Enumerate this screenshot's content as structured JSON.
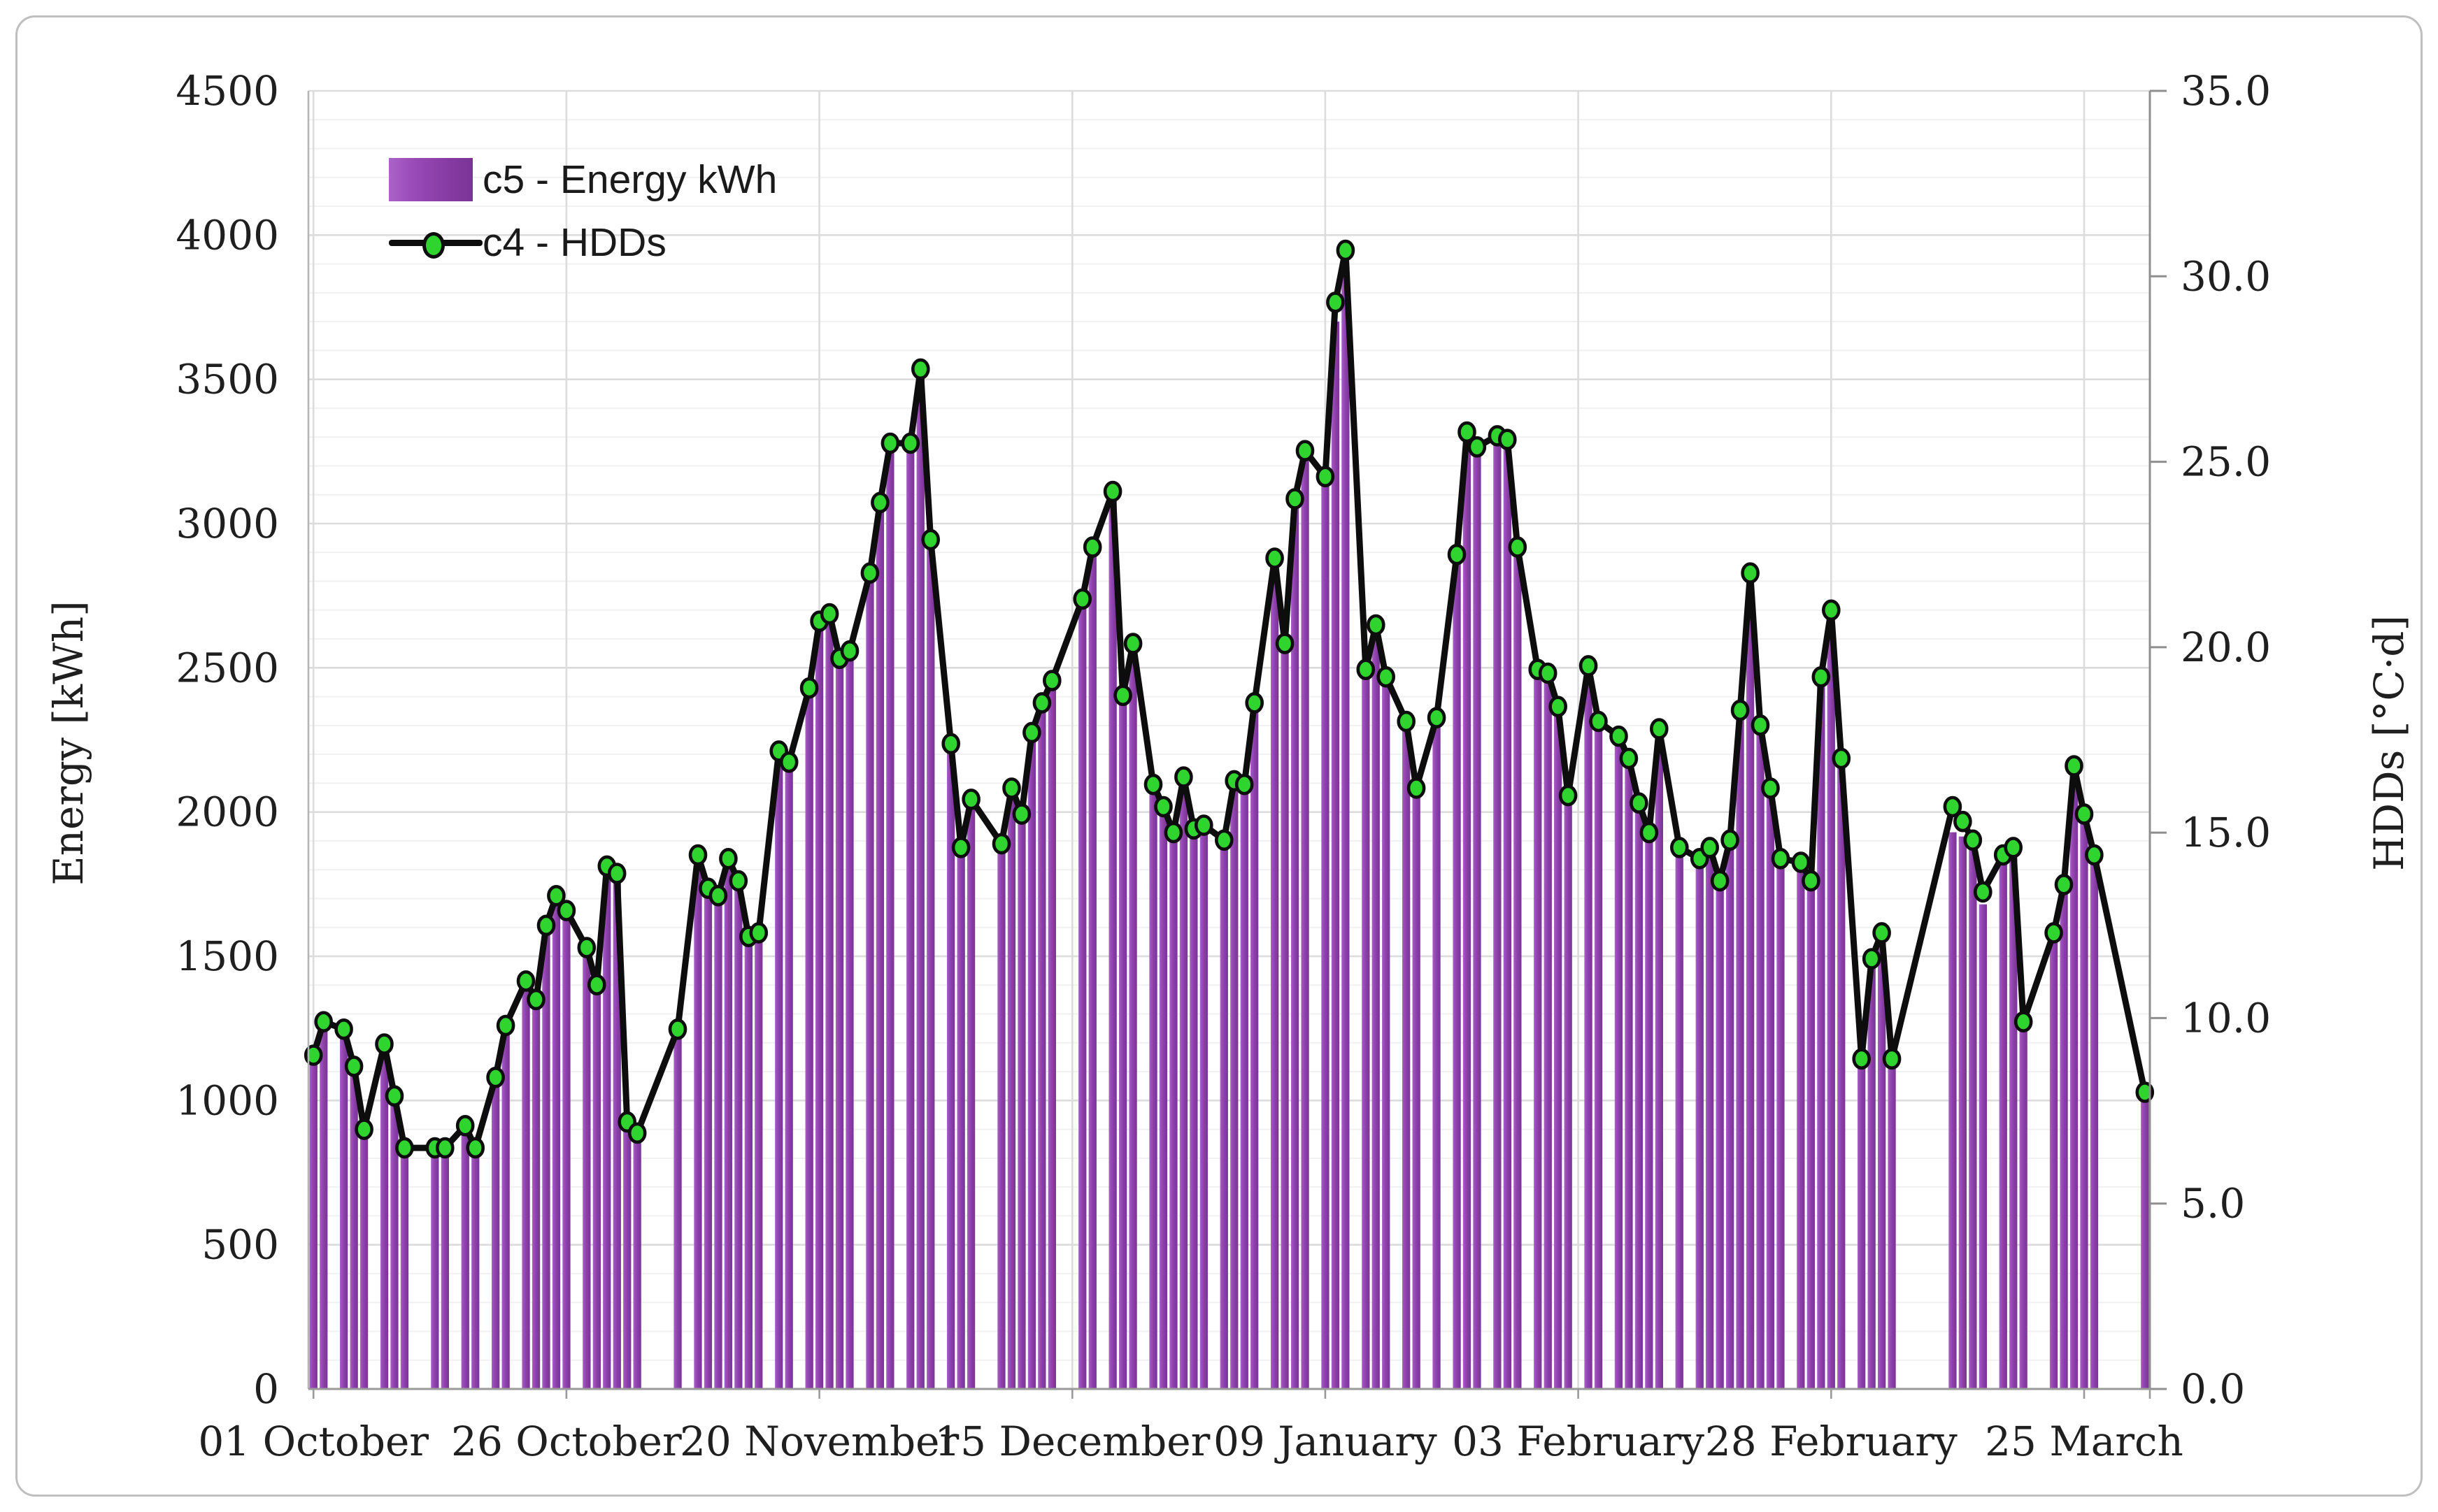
{
  "chart_data": {
    "type": "bar",
    "subtype": "combo-bar-line-dual-axis",
    "title": "",
    "x_axis": {
      "n_days": 182,
      "tick_labels": [
        "01 October",
        "26 October",
        "20 November",
        "15 December",
        "09 January",
        "03 February",
        "28 February",
        "25 March"
      ],
      "tick_positions": [
        0,
        25,
        50,
        75,
        100,
        125,
        150,
        175
      ]
    },
    "left_axis": {
      "title": "Energy [kWh]",
      "min": 0,
      "max": 4500,
      "major_step": 500,
      "minor_step": 100,
      "decimals": 0
    },
    "right_axis": {
      "title": "HDDs [°C·d]",
      "min": 0,
      "max": 35,
      "major_step": 5,
      "decimals": 1
    },
    "legend": {
      "items": [
        {
          "label": "c5 - Energy kWh",
          "marker": "bar-swatch"
        },
        {
          "label": "c4 - HDDs",
          "marker": "line-dot"
        }
      ]
    },
    "grid": {
      "horizontal_minor": true,
      "horizontal_major": true,
      "vertical_at_ticks": true
    },
    "colors": {
      "bar_main": "#8b3ea8",
      "bar_light": "#aa63c8",
      "bar_dark": "#7a3496",
      "line": "#0d0d0d",
      "marker_fill": "#2fd42f",
      "marker_stroke": "#0d0d0d",
      "grid_minor": "#f1f1f1",
      "grid_major": "#dcdcdc",
      "axis_line": "#9a9a9a",
      "text": "#1f1f1f",
      "frame_border": "#bfbfbf"
    },
    "series": [
      {
        "name": "c5 - Energy kWh",
        "type": "bar",
        "axis": "left",
        "values": [
          1140,
          1270,
          null,
          1245,
          1120,
          900,
          null,
          1195,
          1015,
          835,
          null,
          null,
          835,
          835,
          null,
          915,
          835,
          null,
          1080,
          1260,
          null,
          1415,
          1350,
          1605,
          1710,
          1660,
          null,
          1530,
          1400,
          1815,
          1790,
          925,
          885,
          null,
          null,
          null,
          1250,
          null,
          1850,
          1735,
          1710,
          1840,
          1760,
          1570,
          1580,
          null,
          2210,
          2175,
          null,
          2430,
          2660,
          2690,
          2535,
          2560,
          null,
          2830,
          3075,
          3280,
          null,
          3280,
          3530,
          2945,
          null,
          2240,
          1880,
          2045,
          null,
          null,
          1890,
          2085,
          1995,
          2275,
          2380,
          2455,
          null,
          null,
          2740,
          2920,
          null,
          3110,
          2405,
          2585,
          null,
          2095,
          2020,
          1930,
          2120,
          1940,
          1955,
          null,
          1905,
          2110,
          2095,
          2380,
          null,
          2880,
          2585,
          3085,
          3255,
          null,
          3165,
          3700,
          3860,
          null,
          2495,
          2650,
          2470,
          null,
          2315,
          2085,
          null,
          2330,
          null,
          2895,
          3320,
          3265,
          null,
          3305,
          3290,
          2920,
          null,
          2495,
          2480,
          2365,
          2060,
          null,
          2510,
          2315,
          null,
          2265,
          2185,
          2030,
          1930,
          2290,
          null,
          1880,
          null,
          1840,
          1875,
          1760,
          1905,
          2355,
          2780,
          2300,
          2085,
          1840,
          null,
          1825,
          1760,
          2470,
          2640,
          2185,
          null,
          1130,
          1490,
          1580,
          1140,
          null,
          null,
          null,
          null,
          null,
          1930,
          1915,
          1890,
          1680,
          null,
          1845,
          1860,
          1260,
          null,
          null,
          1570,
          1745,
          2155,
          1985,
          1850,
          null,
          null,
          null,
          null,
          1010
        ]
      },
      {
        "name": "c4 - HDDs",
        "type": "line",
        "axis": "right",
        "values": [
          9.0,
          9.9,
          null,
          9.7,
          8.7,
          7.0,
          null,
          9.3,
          7.9,
          6.5,
          null,
          null,
          6.5,
          6.5,
          null,
          7.1,
          6.5,
          null,
          8.4,
          9.8,
          null,
          11.0,
          10.5,
          12.5,
          13.3,
          12.9,
          null,
          11.9,
          10.9,
          14.1,
          13.9,
          7.2,
          6.9,
          null,
          null,
          null,
          9.7,
          null,
          14.4,
          13.5,
          13.3,
          14.3,
          13.7,
          12.2,
          12.3,
          null,
          17.2,
          16.9,
          null,
          18.9,
          20.7,
          20.9,
          19.7,
          19.9,
          null,
          22.0,
          23.9,
          25.5,
          null,
          25.5,
          27.5,
          22.9,
          null,
          17.4,
          14.6,
          15.9,
          null,
          null,
          14.7,
          16.2,
          15.5,
          17.7,
          18.5,
          19.1,
          null,
          null,
          21.3,
          22.7,
          null,
          24.2,
          18.7,
          20.1,
          null,
          16.3,
          15.7,
          15.0,
          16.5,
          15.1,
          15.2,
          null,
          14.8,
          16.4,
          16.3,
          18.5,
          null,
          22.4,
          20.1,
          24.0,
          25.3,
          null,
          24.6,
          29.3,
          30.7,
          null,
          19.4,
          20.6,
          19.2,
          null,
          18.0,
          16.2,
          null,
          18.1,
          null,
          22.5,
          25.8,
          25.4,
          null,
          25.7,
          25.6,
          22.7,
          null,
          19.4,
          19.3,
          18.4,
          16.0,
          null,
          19.5,
          18.0,
          null,
          17.6,
          17.0,
          15.8,
          15.0,
          17.8,
          null,
          14.6,
          null,
          14.3,
          14.6,
          13.7,
          14.8,
          18.3,
          22.0,
          17.9,
          16.2,
          14.3,
          null,
          14.2,
          13.7,
          19.2,
          21.0,
          17.0,
          null,
          8.9,
          11.6,
          12.3,
          8.9,
          null,
          null,
          null,
          null,
          null,
          15.7,
          15.3,
          14.8,
          13.4,
          null,
          14.4,
          14.6,
          9.9,
          null,
          null,
          12.3,
          13.6,
          16.8,
          15.5,
          14.4,
          null,
          null,
          null,
          null,
          8.0
        ]
      }
    ]
  }
}
